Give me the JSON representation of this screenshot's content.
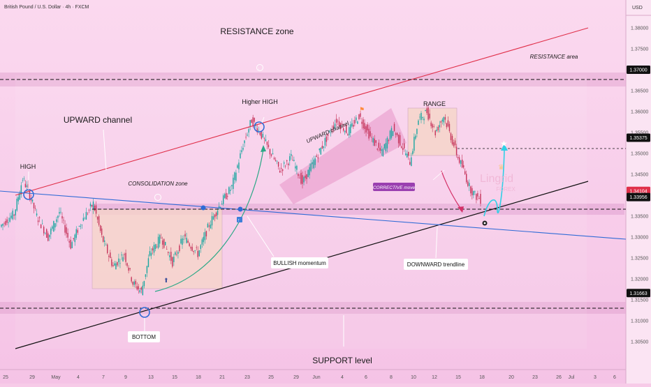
{
  "header": {
    "symbol_title": "British Pound / U.S. Dollar · 4h · FXCM",
    "currency": "USD"
  },
  "colors": {
    "up": "#1aa6a0",
    "down": "#c5335a",
    "resistance": "#e0304a",
    "trendline": "#101010",
    "downtrend": "#2f6bd6",
    "label_tag": "#111111",
    "corrective_tag": "#9a3fb0"
  },
  "chart_data": {
    "type": "candlestick",
    "title": "British Pound / U.S. Dollar · 4h · FXCM",
    "ylim": [
      1.3,
      1.385
    ],
    "y_ticks": [
      "1.38000",
      "1.37500",
      "1.37000",
      "1.36500",
      "1.36000",
      "1.35500",
      "1.35000",
      "1.34500",
      "1.34000",
      "1.33500",
      "1.33000",
      "1.32500",
      "1.32000",
      "1.31500",
      "1.31000",
      "1.30500"
    ],
    "x_ticks": [
      "25",
      "29",
      "May",
      "4",
      "7",
      "9",
      "13",
      "15",
      "18",
      "21",
      "23",
      "25",
      "29",
      "Jun",
      "4",
      "6",
      "8",
      "10",
      "12",
      "15",
      "18",
      "20",
      "23",
      "26",
      "Jul",
      "3",
      "6"
    ],
    "price_labels": [
      {
        "value": "1.37000",
        "y": 1.37,
        "highlight": false
      },
      {
        "value": "1.35375",
        "y": 1.35375,
        "highlight": false
      },
      {
        "value": "1.34104",
        "y": 1.34104,
        "highlight": true
      },
      {
        "value": "1.33956",
        "y": 1.33956,
        "highlight": false
      },
      {
        "value": "1.31663",
        "y": 1.31663,
        "highlight": false
      }
    ],
    "annotations": {
      "resistance_zone": "RESISTANCE zone",
      "resistance_area": "RESISTANCE area",
      "upward_channel": "UPWARD channel",
      "upward_channel_small": "UPWARD channel",
      "higher_high": "Higher HIGH",
      "high": "HIGH",
      "range": "RANGE",
      "consolidation_zone": "CONSOLIDATION zone",
      "corrective_move": "CORRECTIVE move",
      "bullish_momentum": "BULLISH momentum",
      "downward_trendline": "DOWNWARD trendline",
      "bottom": "BOTTOM",
      "support_level": "SUPPORT level"
    },
    "logo": {
      "name": "Lingrid",
      "sub": "FOREX"
    }
  }
}
